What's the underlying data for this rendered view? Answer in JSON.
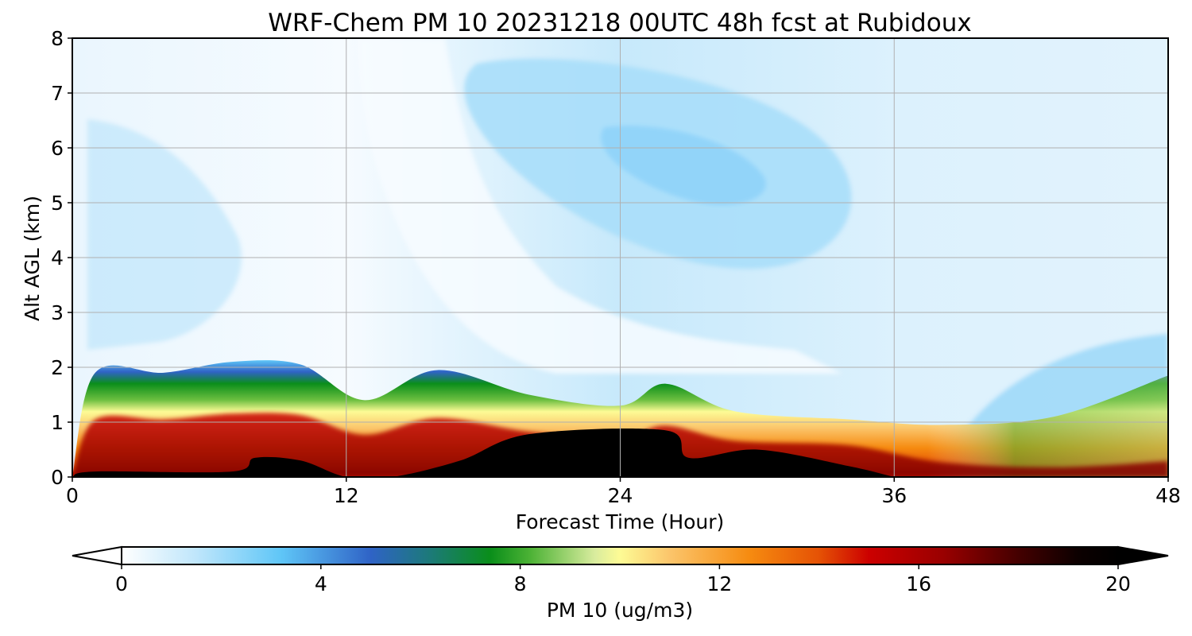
{
  "chart_data": {
    "type": "heatmap",
    "title": "WRF-Chem PM 10  20231218 00UTC 48h fcst at Rubidoux",
    "xlabel": "Forecast Time (Hour)",
    "ylabel": "Alt AGL (km)",
    "xlim": [
      0,
      48
    ],
    "ylim": [
      0,
      8
    ],
    "xticks": [
      0,
      12,
      24,
      36,
      48
    ],
    "yticks": [
      0,
      1,
      2,
      3,
      4,
      5,
      6,
      7,
      8
    ],
    "grid": true,
    "colorbar": {
      "label": "PM 10  (ug/m3)",
      "ticks": [
        0,
        4,
        8,
        12,
        16,
        20
      ],
      "range": [
        0,
        20
      ],
      "extend": "both",
      "orientation": "horizontal",
      "stops": [
        {
          "v": 0,
          "c": "#ffffff"
        },
        {
          "v": 1.5,
          "c": "#bfe6fb"
        },
        {
          "v": 3.2,
          "c": "#5fc6f7"
        },
        {
          "v": 5,
          "c": "#2f63c6"
        },
        {
          "v": 6.2,
          "c": "#1c7a78"
        },
        {
          "v": 7.4,
          "c": "#0a8e1a"
        },
        {
          "v": 8.2,
          "c": "#4cb235"
        },
        {
          "v": 9.5,
          "c": "#d9ec9e"
        },
        {
          "v": 10,
          "c": "#fdfb95"
        },
        {
          "v": 11,
          "c": "#fbc56b"
        },
        {
          "v": 12.6,
          "c": "#f68b10"
        },
        {
          "v": 14,
          "c": "#e55205"
        },
        {
          "v": 15,
          "c": "#cc0000"
        },
        {
          "v": 16.5,
          "c": "#990000"
        },
        {
          "v": 18,
          "c": "#440000"
        },
        {
          "v": 19.2,
          "c": "#0c0000"
        },
        {
          "v": 20,
          "c": "#000000"
        }
      ]
    },
    "boundary_layer_top_km": [
      {
        "t": 0,
        "h": 0
      },
      {
        "t": 1,
        "h": 1.9
      },
      {
        "t": 4,
        "h": 1.9
      },
      {
        "t": 7,
        "h": 2.1
      },
      {
        "t": 10,
        "h": 2.05
      },
      {
        "t": 12.8,
        "h": 1.4
      },
      {
        "t": 16,
        "h": 1.95
      },
      {
        "t": 20,
        "h": 1.5
      },
      {
        "t": 24,
        "h": 1.3
      },
      {
        "t": 26,
        "h": 1.7
      },
      {
        "t": 29,
        "h": 1.2
      },
      {
        "t": 34,
        "h": 1.05
      },
      {
        "t": 38,
        "h": 0.95
      },
      {
        "t": 43,
        "h": 1.1
      },
      {
        "t": 48,
        "h": 1.85
      }
    ],
    "max_core_top_km": [
      {
        "t": 0,
        "h": 0
      },
      {
        "t": 1,
        "h": 0.1
      },
      {
        "t": 7,
        "h": 0.1
      },
      {
        "t": 8,
        "h": 0.35
      },
      {
        "t": 10,
        "h": 0.3
      },
      {
        "t": 12,
        "h": 0
      },
      {
        "t": 14,
        "h": 0
      },
      {
        "t": 17,
        "h": 0.3
      },
      {
        "t": 20,
        "h": 0.78
      },
      {
        "t": 26,
        "h": 0.85
      },
      {
        "t": 27,
        "h": 0.35
      },
      {
        "t": 30,
        "h": 0.5
      },
      {
        "t": 34,
        "h": 0.2
      },
      {
        "t": 36,
        "h": 0
      }
    ]
  }
}
